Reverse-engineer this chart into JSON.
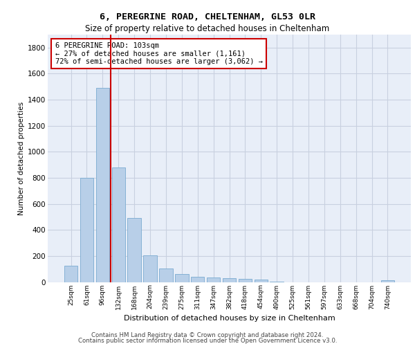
{
  "title1": "6, PEREGRINE ROAD, CHELTENHAM, GL53 0LR",
  "title2": "Size of property relative to detached houses in Cheltenham",
  "xlabel": "Distribution of detached houses by size in Cheltenham",
  "ylabel": "Number of detached properties",
  "categories": [
    "25sqm",
    "61sqm",
    "96sqm",
    "132sqm",
    "168sqm",
    "204sqm",
    "239sqm",
    "275sqm",
    "311sqm",
    "347sqm",
    "382sqm",
    "418sqm",
    "454sqm",
    "490sqm",
    "525sqm",
    "561sqm",
    "597sqm",
    "633sqm",
    "668sqm",
    "704sqm",
    "740sqm"
  ],
  "values": [
    125,
    800,
    1490,
    880,
    490,
    205,
    105,
    63,
    40,
    35,
    30,
    25,
    18,
    5,
    0,
    0,
    0,
    0,
    0,
    0,
    15
  ],
  "bar_color": "#b8cfe8",
  "bar_edge_color": "#7aaad0",
  "vline_color": "#cc0000",
  "annotation_title": "6 PEREGRINE ROAD: 103sqm",
  "annotation_line1": "← 27% of detached houses are smaller (1,161)",
  "annotation_line2": "72% of semi-detached houses are larger (3,062) →",
  "ylim": [
    0,
    1900
  ],
  "yticks": [
    0,
    200,
    400,
    600,
    800,
    1000,
    1200,
    1400,
    1600,
    1800
  ],
  "footer1": "Contains HM Land Registry data © Crown copyright and database right 2024.",
  "footer2": "Contains public sector information licensed under the Open Government Licence v3.0.",
  "bg_color": "#e8eef8",
  "grid_color": "#c8d0e0"
}
